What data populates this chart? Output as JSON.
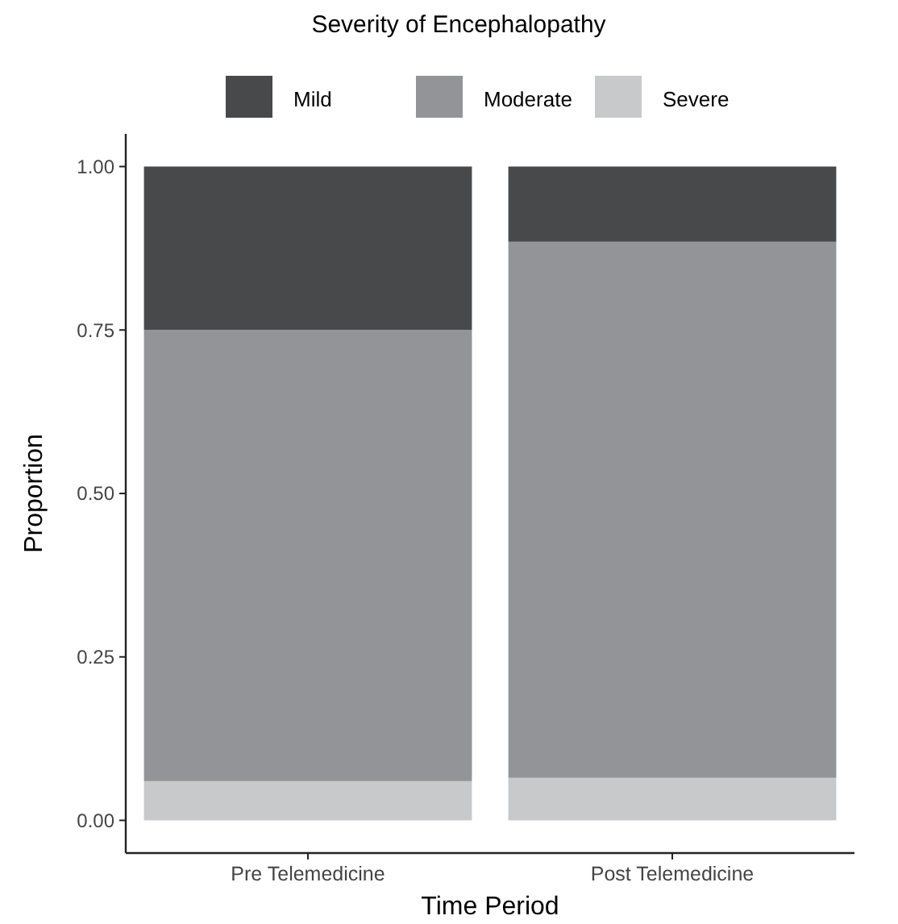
{
  "chart_data": {
    "type": "bar",
    "stacked": true,
    "legend_title": "Severity of Encephalopathy",
    "xlabel": "Time Period",
    "ylabel": "Proportion",
    "categories": [
      "Pre Telemedicine",
      "Post Telemedicine"
    ],
    "series": [
      {
        "name": "Severe",
        "color": "#c8c9cb",
        "values": [
          0.06,
          0.065
        ]
      },
      {
        "name": "Moderate",
        "color": "#939498",
        "values": [
          0.69,
          0.82
        ]
      },
      {
        "name": "Mild",
        "color": "#48494b",
        "values": [
          0.25,
          0.115
        ]
      }
    ],
    "ylim": [
      -0.05,
      1.05
    ],
    "yticks": [
      {
        "value": 0,
        "label": "0.00"
      },
      {
        "value": 0.25,
        "label": "0.25"
      },
      {
        "value": 0.5,
        "label": "0.50"
      },
      {
        "value": 0.75,
        "label": "0.75"
      },
      {
        "value": 1,
        "label": "1.00"
      }
    ],
    "grid": false,
    "legend": "top"
  }
}
